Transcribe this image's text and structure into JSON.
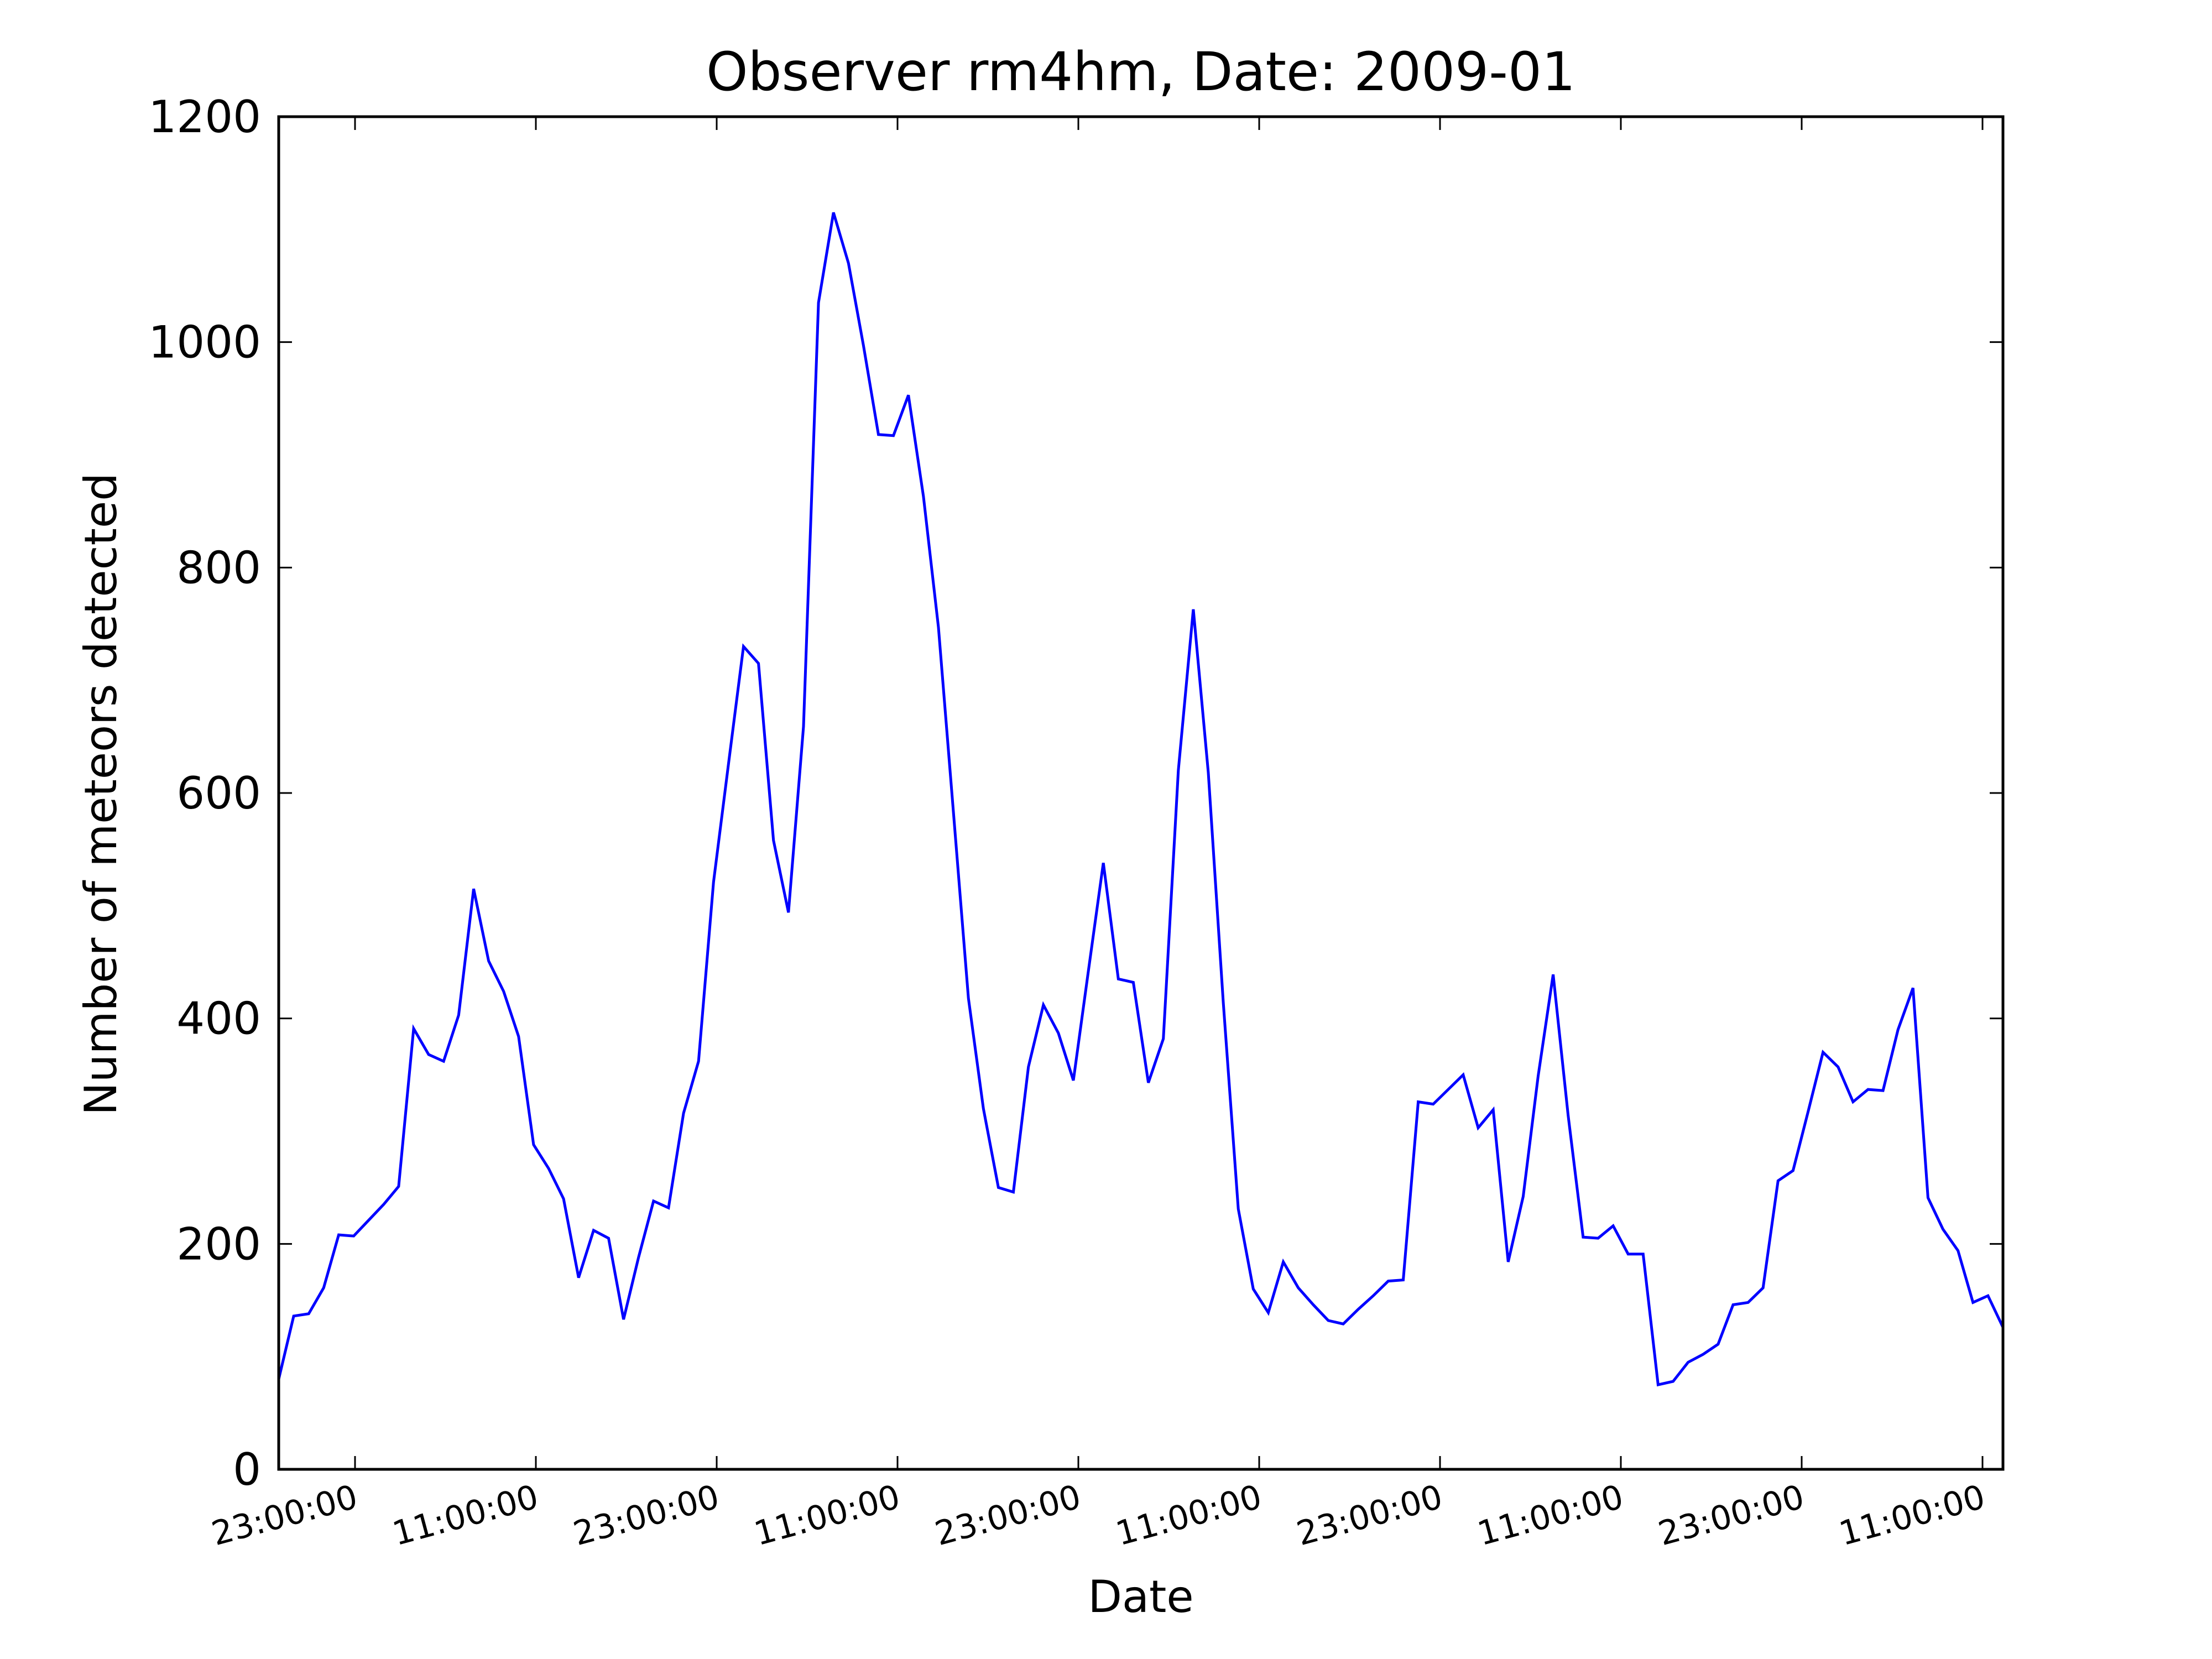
{
  "chart_data": {
    "type": "line",
    "title": "Observer rm4hm, Date: 2009-01",
    "xlabel": "Date",
    "ylabel": "Number of meteors detected",
    "ylim": [
      0,
      1200
    ],
    "y_ticks": [
      0,
      200,
      400,
      600,
      800,
      1000,
      1200
    ],
    "x_tick_labels": [
      "23:00:00",
      "11:00:00",
      "23:00:00",
      "11:00:00",
      "23:00:00",
      "11:00:00",
      "23:00:00",
      "11:00:00",
      "23:00:00",
      "11:00:00"
    ],
    "grid": false,
    "line_color": "#0000ff",
    "series": [
      {
        "values": [
          80,
          136,
          138,
          161,
          208,
          207,
          221,
          235,
          251,
          391,
          368,
          362,
          403,
          515,
          451,
          424,
          384,
          288,
          267,
          240,
          170,
          212,
          205,
          133,
          188,
          238,
          232,
          316,
          362,
          521,
          626,
          730,
          715,
          558,
          494,
          659,
          1035,
          1115,
          1070,
          997,
          918,
          917,
          953,
          863,
          747,
          583,
          418,
          320,
          250,
          246,
          357,
          412,
          387,
          345,
          442,
          538,
          435,
          432,
          343,
          382,
          620,
          763,
          618,
          414,
          231,
          160,
          139,
          184,
          161,
          146,
          132,
          129,
          142,
          154,
          167,
          168,
          326,
          324,
          337,
          350,
          303,
          319,
          184,
          242,
          349,
          439,
          314,
          206,
          205,
          216,
          191,
          191,
          75,
          78,
          95,
          102,
          111,
          146,
          148,
          161,
          256,
          265,
          317,
          370,
          357,
          326,
          337,
          336,
          390,
          427,
          241,
          213,
          194,
          148,
          154,
          126
        ]
      }
    ]
  }
}
